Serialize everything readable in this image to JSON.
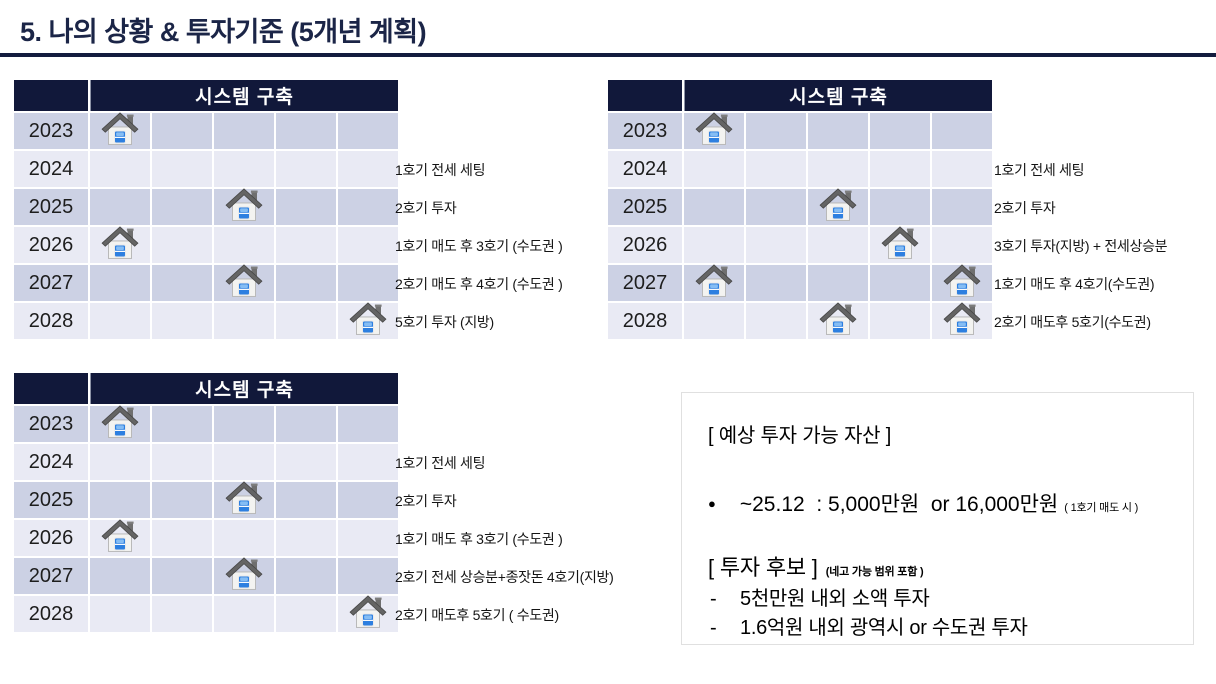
{
  "slide": {
    "title": "5. 나의 상황 & 투자기준 (5개년 계획)"
  },
  "colors": {
    "title_navy": "#1b2547",
    "rule_navy": "#131c3e",
    "table_header_navy": "#11183a",
    "row_band_dark": "#ccd1e4",
    "row_band_light": "#e9eaf4",
    "header_text": "#ffffff",
    "box_border": "#e0e0e0",
    "house_window_blue": "#2d7fe0"
  },
  "tables": [
    {
      "header": "시스템 구축",
      "years": [
        "2023",
        "2024",
        "2025",
        "2026",
        "2027",
        "2028"
      ],
      "houses": [
        [
          0
        ],
        [],
        [
          2
        ],
        [
          0
        ],
        [
          2
        ],
        [
          4
        ]
      ],
      "annotations": [
        {
          "row": 1,
          "text": "1호기 전세 세팅"
        },
        {
          "row": 2,
          "text": "2호기 투자"
        },
        {
          "row": 3,
          "text": "1호기 매도 후 3호기 (수도권 )"
        },
        {
          "row": 4,
          "text": "2호기 매도 후 4호기 (수도권 )"
        },
        {
          "row": 5,
          "text": "5호기 투자 (지방)"
        }
      ]
    },
    {
      "header": "시스템 구축",
      "years": [
        "2023",
        "2024",
        "2025",
        "2026",
        "2027",
        "2028"
      ],
      "houses": [
        [
          0
        ],
        [],
        [
          2
        ],
        [
          3
        ],
        [
          0,
          4
        ],
        [
          2,
          4
        ]
      ],
      "annotations": [
        {
          "row": 1,
          "text": "1호기 전세 세팅"
        },
        {
          "row": 2,
          "text": "2호기 투자"
        },
        {
          "row": 3,
          "text": "3호기 투자(지방) + 전세상승분"
        },
        {
          "row": 4,
          "text": "1호기 매도 후 4호기(수도권)"
        },
        {
          "row": 5,
          "text": "2호기 매도후 5호기(수도권)"
        }
      ]
    },
    {
      "header": "시스템 구축",
      "years": [
        "2023",
        "2024",
        "2025",
        "2026",
        "2027",
        "2028"
      ],
      "houses": [
        [
          0
        ],
        [],
        [
          2
        ],
        [
          0
        ],
        [
          2
        ],
        [
          4
        ]
      ],
      "annotations": [
        {
          "row": 1,
          "text": "1호기 전세 세팅"
        },
        {
          "row": 2,
          "text": "2호기 투자"
        },
        {
          "row": 3,
          "text": "1호기 매도 후 3호기 (수도권 )"
        },
        {
          "row": 4,
          "text": "2호기 전세 상승분+종잣돈 4호기(지방)"
        },
        {
          "row": 5,
          "text": "2호기 매도후 5호기 ( 수도권)"
        }
      ]
    }
  ],
  "info_box": {
    "section1_title": "[ 예상 투자 가능 자산 ]",
    "bullet_main": "~25.12  : 5,000만원  or 16,000만원",
    "bullet_small": "( 1호기 매도 시 )",
    "section2_title": "[ 투자 후보 ]",
    "section2_small": "(네고 가능 범위 포함 )",
    "items": [
      "5천만원  내외 소액 투자",
      "1.6억원 내외 광역시 or 수도권 투자"
    ]
  }
}
